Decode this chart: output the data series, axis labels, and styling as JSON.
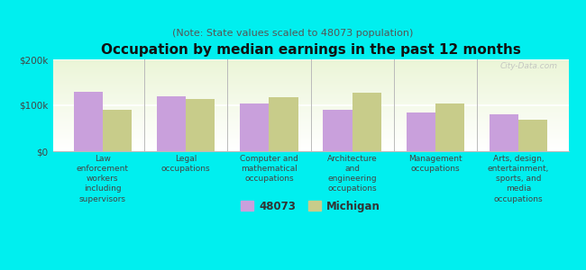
{
  "title": "Occupation by median earnings in the past 12 months",
  "subtitle": "(Note: State values scaled to 48073 population)",
  "categories": [
    "Law\nenforcement\nworkers\nincluding\nsupervisors",
    "Legal\noccupations",
    "Computer and\nmathematical\noccupations",
    "Architecture\nand\nengineering\noccupations",
    "Management\noccupations",
    "Arts, design,\nentertainment,\nsports, and\nmedia\noccupations"
  ],
  "values_48073": [
    130000,
    120000,
    103000,
    90000,
    84000,
    80000
  ],
  "values_michigan": [
    90000,
    113000,
    117000,
    128000,
    103000,
    68000
  ],
  "bar_color_48073": "#c9a0dc",
  "bar_color_michigan": "#c8cc8a",
  "background_color": "#00efef",
  "ylim": [
    0,
    200000
  ],
  "yticks": [
    0,
    100000,
    200000
  ],
  "ytick_labels": [
    "$0",
    "$100k",
    "$200k"
  ],
  "legend_label_48073": "48073",
  "legend_label_michigan": "Michigan",
  "watermark": "City-Data.com",
  "bar_width": 0.35,
  "title_fontsize": 11,
  "subtitle_fontsize": 8,
  "tick_fontsize": 7.5,
  "legend_fontsize": 8.5
}
